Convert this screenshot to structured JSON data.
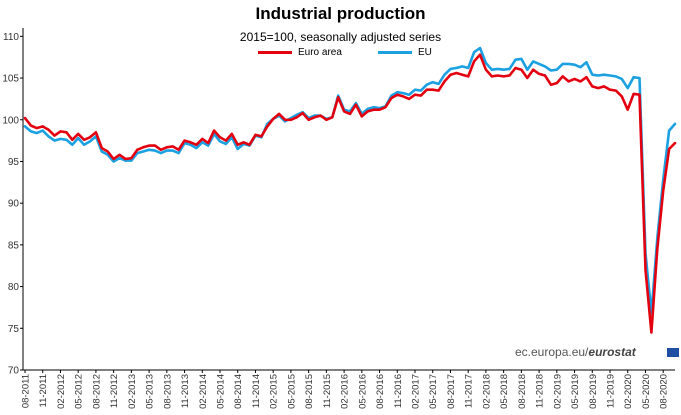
{
  "chart_data": {
    "type": "line",
    "title": "Industrial production",
    "subtitle": "2015=100, seasonally adjusted series",
    "xlabel": "",
    "ylabel": "",
    "ylim": [
      70,
      111
    ],
    "yticks": [
      70,
      75,
      80,
      85,
      90,
      95,
      100,
      105,
      110
    ],
    "grid": false,
    "legend_position": "top-center",
    "x_start": "08-2011",
    "x_tick_labels": [
      "08-2011",
      "11-2011",
      "02-2012",
      "05-2012",
      "08-2012",
      "11-2012",
      "02-2013",
      "05-2013",
      "08-2013",
      "11-2013",
      "02-2014",
      "05-2014",
      "08-2014",
      "11-2014",
      "02-2015",
      "05-2015",
      "08-2015",
      "11-2015",
      "02-2016",
      "05-2016",
      "08-2016",
      "11-2016",
      "02-2017",
      "05-2017",
      "08-2017",
      "11-2017",
      "02-2018",
      "05-2018",
      "08-2018",
      "11-2018",
      "02-2019",
      "05-2019",
      "08-2019",
      "11-2019",
      "02-2020",
      "05-2020",
      "08-2020"
    ],
    "series": [
      {
        "name": "Euro area",
        "color": "#e3000f",
        "values": [
          100.2,
          99.3,
          99.0,
          99.2,
          98.8,
          98.1,
          98.6,
          98.5,
          97.6,
          98.3,
          97.6,
          97.9,
          98.5,
          96.6,
          96.2,
          95.3,
          95.8,
          95.3,
          95.4,
          96.4,
          96.7,
          96.9,
          96.9,
          96.4,
          96.7,
          96.8,
          96.4,
          97.5,
          97.3,
          97.0,
          97.7,
          97.2,
          98.7,
          97.9,
          97.5,
          98.3,
          97.0,
          97.3,
          97.0,
          98.2,
          98.0,
          99.2,
          100.1,
          100.7,
          100.0,
          100.0,
          100.3,
          100.8,
          100.0,
          100.3,
          100.5,
          100.0,
          100.3,
          102.7,
          101.0,
          100.7,
          101.8,
          100.4,
          101.0,
          101.2,
          101.2,
          101.5,
          102.6,
          103.0,
          102.8,
          102.5,
          103.0,
          102.9,
          103.6,
          103.6,
          103.5,
          104.6,
          105.4,
          105.6,
          105.4,
          105.2,
          107.0,
          107.8,
          106.0,
          105.2,
          105.3,
          105.2,
          105.3,
          106.2,
          106.0,
          105.0,
          106.0,
          105.5,
          105.3,
          104.2,
          104.4,
          105.2,
          104.6,
          104.9,
          104.6,
          105.1,
          104.0,
          103.8,
          104.0,
          103.6,
          103.5,
          102.8,
          101.2,
          103.1,
          103.0,
          82.0,
          74.5,
          84.5,
          91.5,
          96.5,
          97.2
        ]
      },
      {
        "name": "EU",
        "color": "#1ba1e2",
        "values": [
          99.2,
          98.6,
          98.4,
          98.7,
          98.0,
          97.5,
          97.7,
          97.6,
          97.0,
          97.8,
          97.0,
          97.4,
          98.0,
          96.2,
          95.8,
          95.0,
          95.4,
          95.1,
          95.1,
          96.0,
          96.2,
          96.4,
          96.3,
          96.0,
          96.3,
          96.3,
          96.0,
          97.2,
          97.0,
          96.6,
          97.3,
          96.9,
          98.3,
          97.4,
          97.1,
          97.9,
          96.5,
          97.1,
          96.9,
          98.1,
          97.9,
          99.5,
          100.1,
          100.5,
          99.8,
          100.2,
          100.6,
          100.9,
          100.2,
          100.5,
          100.5,
          100.1,
          100.3,
          102.9,
          101.2,
          101.0,
          102.0,
          100.7,
          101.3,
          101.5,
          101.4,
          101.6,
          102.9,
          103.3,
          103.2,
          103.0,
          103.6,
          103.5,
          104.2,
          104.5,
          104.3,
          105.4,
          106.1,
          106.2,
          106.4,
          106.2,
          108.1,
          108.6,
          106.8,
          106.0,
          106.1,
          106.0,
          106.1,
          107.2,
          107.3,
          106.0,
          107.0,
          106.7,
          106.4,
          105.9,
          106.0,
          106.7,
          106.7,
          106.6,
          106.3,
          106.9,
          105.4,
          105.3,
          105.4,
          105.3,
          105.2,
          104.9,
          103.8,
          105.1,
          105.0,
          84.0,
          76.8,
          85.8,
          92.8,
          98.7,
          99.5
        ]
      }
    ]
  },
  "source": {
    "domain_text": "ec.europa.eu/",
    "brand_text": "eurostat"
  },
  "colors": {
    "axis": "#000000",
    "euro_area": "#e3000f",
    "eu": "#1ba1e2",
    "flag": "#1f4fa3"
  }
}
